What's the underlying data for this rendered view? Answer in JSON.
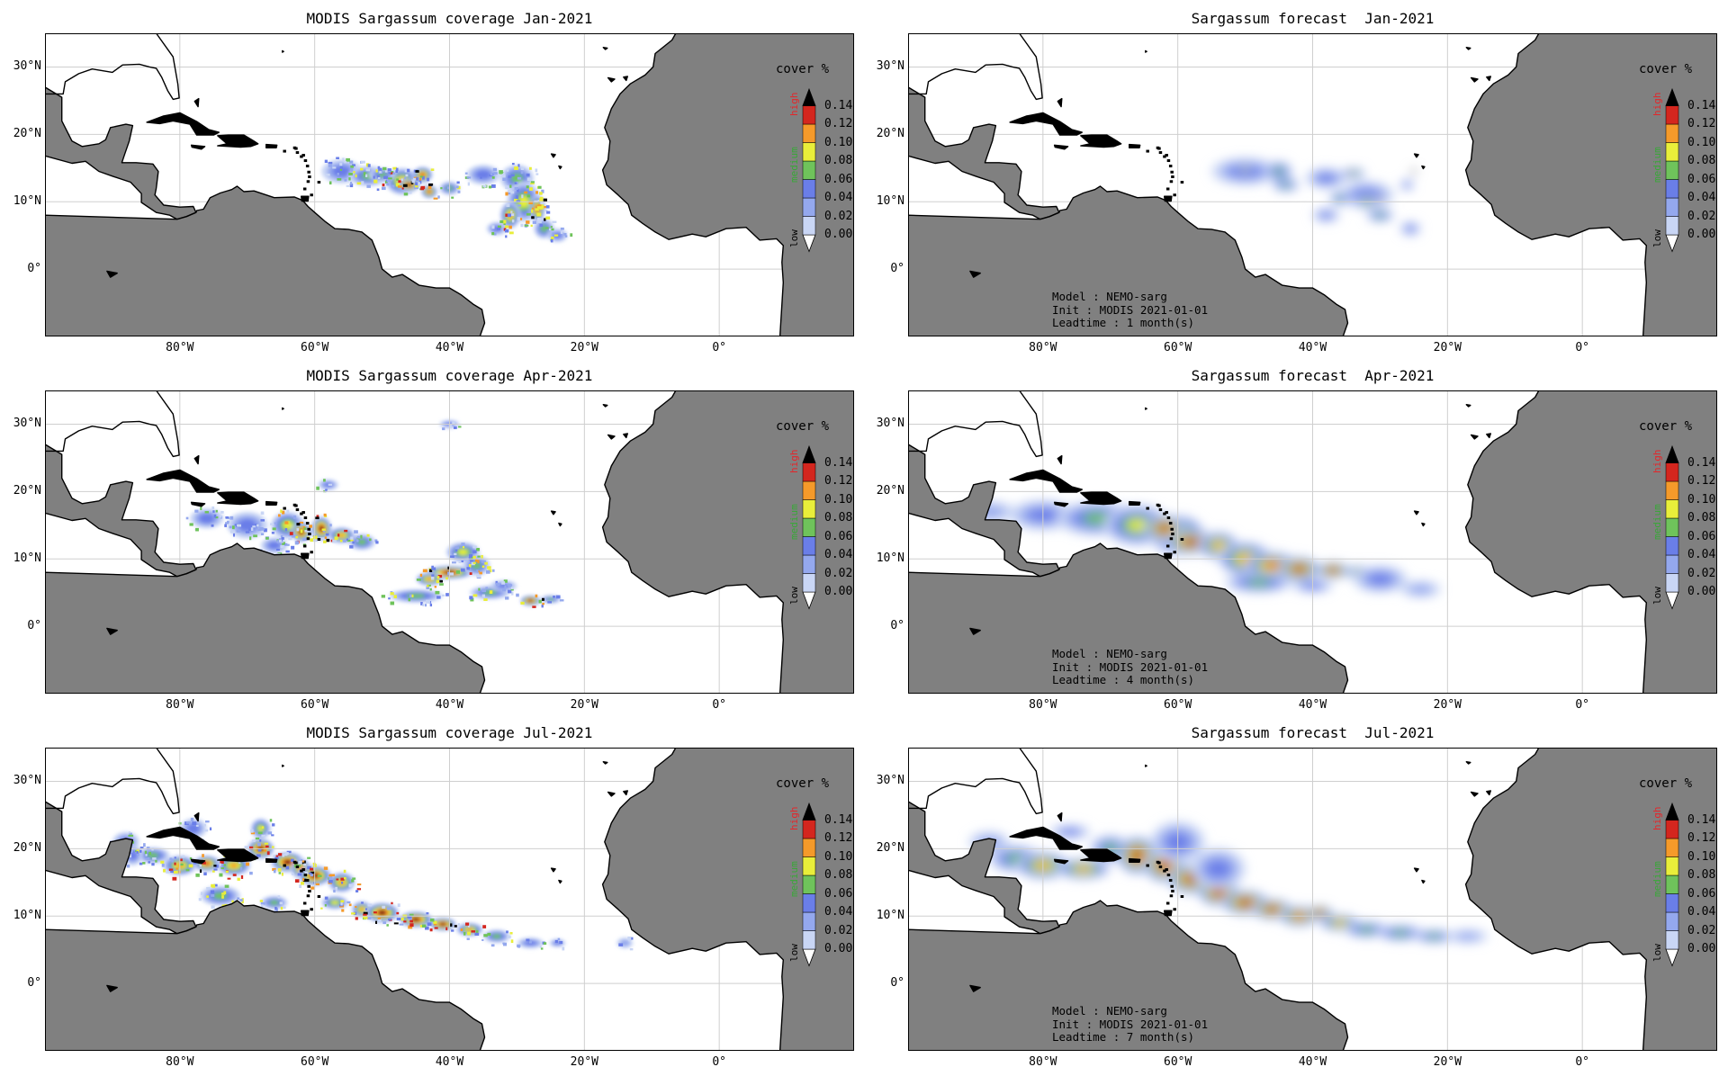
{
  "figure": {
    "colorbar": {
      "title": "cover %",
      "ticks": [
        "0.00",
        "0.02",
        "0.04",
        "0.06",
        "0.08",
        "0.10",
        "0.12",
        "0.14"
      ],
      "categories": [
        {
          "label": "high",
          "color": "#e4262a"
        },
        {
          "label": "medium",
          "color": "#38a837"
        },
        {
          "label": "low",
          "color": "#000000"
        }
      ],
      "colors": [
        "#ffffff",
        "#c9d6f5",
        "#94a8ee",
        "#6a7ee8",
        "#6fc35b",
        "#e9ee3a",
        "#f59a2a",
        "#d4261e",
        "#000000"
      ]
    },
    "map_style": {
      "land": "#808080",
      "ocean": "#ffffff",
      "grid": "#cfcfcf"
    },
    "lat_ticks": [
      "30°N",
      "20°N",
      "10°N",
      "0°"
    ],
    "lon_ticks": [
      "80°W",
      "60°W",
      "40°W",
      "20°W",
      "0°"
    ],
    "panels": [
      {
        "title": "MODIS Sargassum coverage Jan-2021",
        "kind": "observed",
        "month": "Jan-2021",
        "info": null
      },
      {
        "title": "Sargassum forecast  Jan-2021",
        "kind": "forecast",
        "month": "Jan-2021",
        "info": {
          "model": "Model : NEMO-sarg",
          "init": "Init : MODIS 2021-01-01",
          "leadtime": "Leadtime : 1 month(s)"
        }
      },
      {
        "title": "MODIS Sargassum coverage Apr-2021",
        "kind": "observed",
        "month": "Apr-2021",
        "info": null
      },
      {
        "title": "Sargassum forecast  Apr-2021",
        "kind": "forecast",
        "month": "Apr-2021",
        "info": {
          "model": "Model : NEMO-sarg",
          "init": "Init : MODIS 2021-01-01",
          "leadtime": "Leadtime : 4 month(s)"
        }
      },
      {
        "title": "MODIS Sargassum coverage Jul-2021",
        "kind": "observed",
        "month": "Jul-2021",
        "info": null
      },
      {
        "title": "Sargassum forecast  Jul-2021",
        "kind": "forecast",
        "month": "Jul-2021",
        "info": {
          "model": "Model : NEMO-sarg",
          "init": "Init : MODIS 2021-01-01",
          "leadtime": "Leadtime : 7 month(s)"
        }
      }
    ]
  }
}
